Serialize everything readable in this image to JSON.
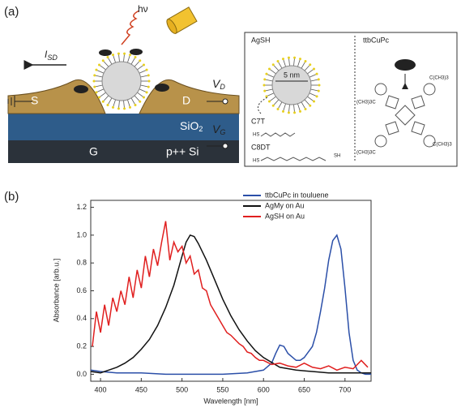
{
  "panel_a": {
    "label": "(a)",
    "photon": "hν",
    "current": {
      "main": "I",
      "sub": "SD"
    },
    "source": "S",
    "drain": "D",
    "v_drain": {
      "main": "V",
      "sub": "D"
    },
    "v_gate": {
      "main": "V",
      "sub": "G"
    },
    "oxide": {
      "main": "SiO",
      "sub": "2"
    },
    "gate": "G",
    "substrate": "p++ Si",
    "inset": {
      "left_title": "AgSH",
      "right_title": "ttbCuPc",
      "size": "5 nm",
      "c7t": "C7T",
      "c7t_end": "HS",
      "c8dt": "C8DT",
      "c8dt_start": "HS",
      "c8dt_end": "SH",
      "tbu_1": "C(CH3)3",
      "tbu_2": "(CH3)3C",
      "tbu_3": "(CH3)3C",
      "tbu_4": "C(CH3)3"
    }
  },
  "chart_data": {
    "type": "line",
    "panel_label": "(b)",
    "x_label": "Wavelength [nm]",
    "y_label": "Absorbance [arb.u.]",
    "xlim": [
      388,
      732
    ],
    "xticks": [
      400,
      450,
      500,
      550,
      600,
      650,
      700
    ],
    "ylim": [
      -0.05,
      1.25
    ],
    "yticks": [
      {
        "value": 0,
        "label": "0.0"
      },
      0.2,
      0.4,
      0.6,
      0.8,
      {
        "value": 1,
        "label": "1.0"
      },
      1.2
    ],
    "legend": "upper right",
    "series": [
      {
        "name": "ttbCuPc in touluene",
        "color": "#2b4fa8",
        "x": [
          388,
          400,
          420,
          450,
          480,
          500,
          520,
          550,
          580,
          600,
          610,
          615,
          620,
          625,
          630,
          640,
          645,
          650,
          660,
          665,
          670,
          675,
          680,
          685,
          690,
          695,
          700,
          705,
          710,
          715,
          720,
          725,
          732
        ],
        "values": [
          0.03,
          0.02,
          0.01,
          0.01,
          0,
          0,
          0,
          0,
          0.01,
          0.03,
          0.08,
          0.15,
          0.21,
          0.2,
          0.15,
          0.1,
          0.1,
          0.12,
          0.2,
          0.3,
          0.45,
          0.62,
          0.82,
          0.96,
          1.0,
          0.9,
          0.62,
          0.3,
          0.1,
          0.03,
          0.01,
          0,
          0
        ]
      },
      {
        "name": "AgMy on Au",
        "color": "#111111",
        "x": [
          388,
          400,
          410,
          420,
          430,
          440,
          450,
          460,
          470,
          480,
          490,
          500,
          505,
          510,
          515,
          520,
          530,
          540,
          550,
          560,
          570,
          580,
          590,
          600,
          620,
          640,
          660,
          680,
          700,
          720,
          732
        ],
        "values": [
          0.02,
          0.01,
          0.03,
          0.05,
          0.08,
          0.12,
          0.18,
          0.25,
          0.35,
          0.48,
          0.64,
          0.85,
          0.95,
          1.0,
          0.99,
          0.94,
          0.82,
          0.68,
          0.54,
          0.42,
          0.32,
          0.24,
          0.17,
          0.12,
          0.05,
          0.03,
          0.02,
          0.01,
          0.01,
          0.01,
          0.01
        ]
      },
      {
        "name": "AgSH on Au",
        "color": "#e01f1f",
        "x": [
          390,
          395,
          400,
          405,
          410,
          415,
          420,
          425,
          430,
          435,
          440,
          445,
          450,
          455,
          460,
          465,
          470,
          475,
          480,
          485,
          490,
          495,
          500,
          505,
          510,
          515,
          520,
          525,
          530,
          535,
          540,
          545,
          550,
          555,
          560,
          565,
          570,
          575,
          580,
          585,
          590,
          595,
          600,
          610,
          620,
          630,
          640,
          650,
          660,
          670,
          680,
          690,
          700,
          710,
          720,
          728
        ],
        "values": [
          0.2,
          0.45,
          0.3,
          0.5,
          0.35,
          0.55,
          0.45,
          0.6,
          0.5,
          0.7,
          0.55,
          0.75,
          0.62,
          0.85,
          0.7,
          0.9,
          0.78,
          0.95,
          1.1,
          0.82,
          0.95,
          0.88,
          0.92,
          0.8,
          0.85,
          0.72,
          0.75,
          0.62,
          0.6,
          0.5,
          0.45,
          0.4,
          0.35,
          0.3,
          0.28,
          0.25,
          0.22,
          0.2,
          0.16,
          0.15,
          0.12,
          0.1,
          0.1,
          0.07,
          0.08,
          0.06,
          0.05,
          0.08,
          0.05,
          0.04,
          0.06,
          0.03,
          0.05,
          0.04,
          0.1,
          0.05
        ]
      }
    ]
  }
}
